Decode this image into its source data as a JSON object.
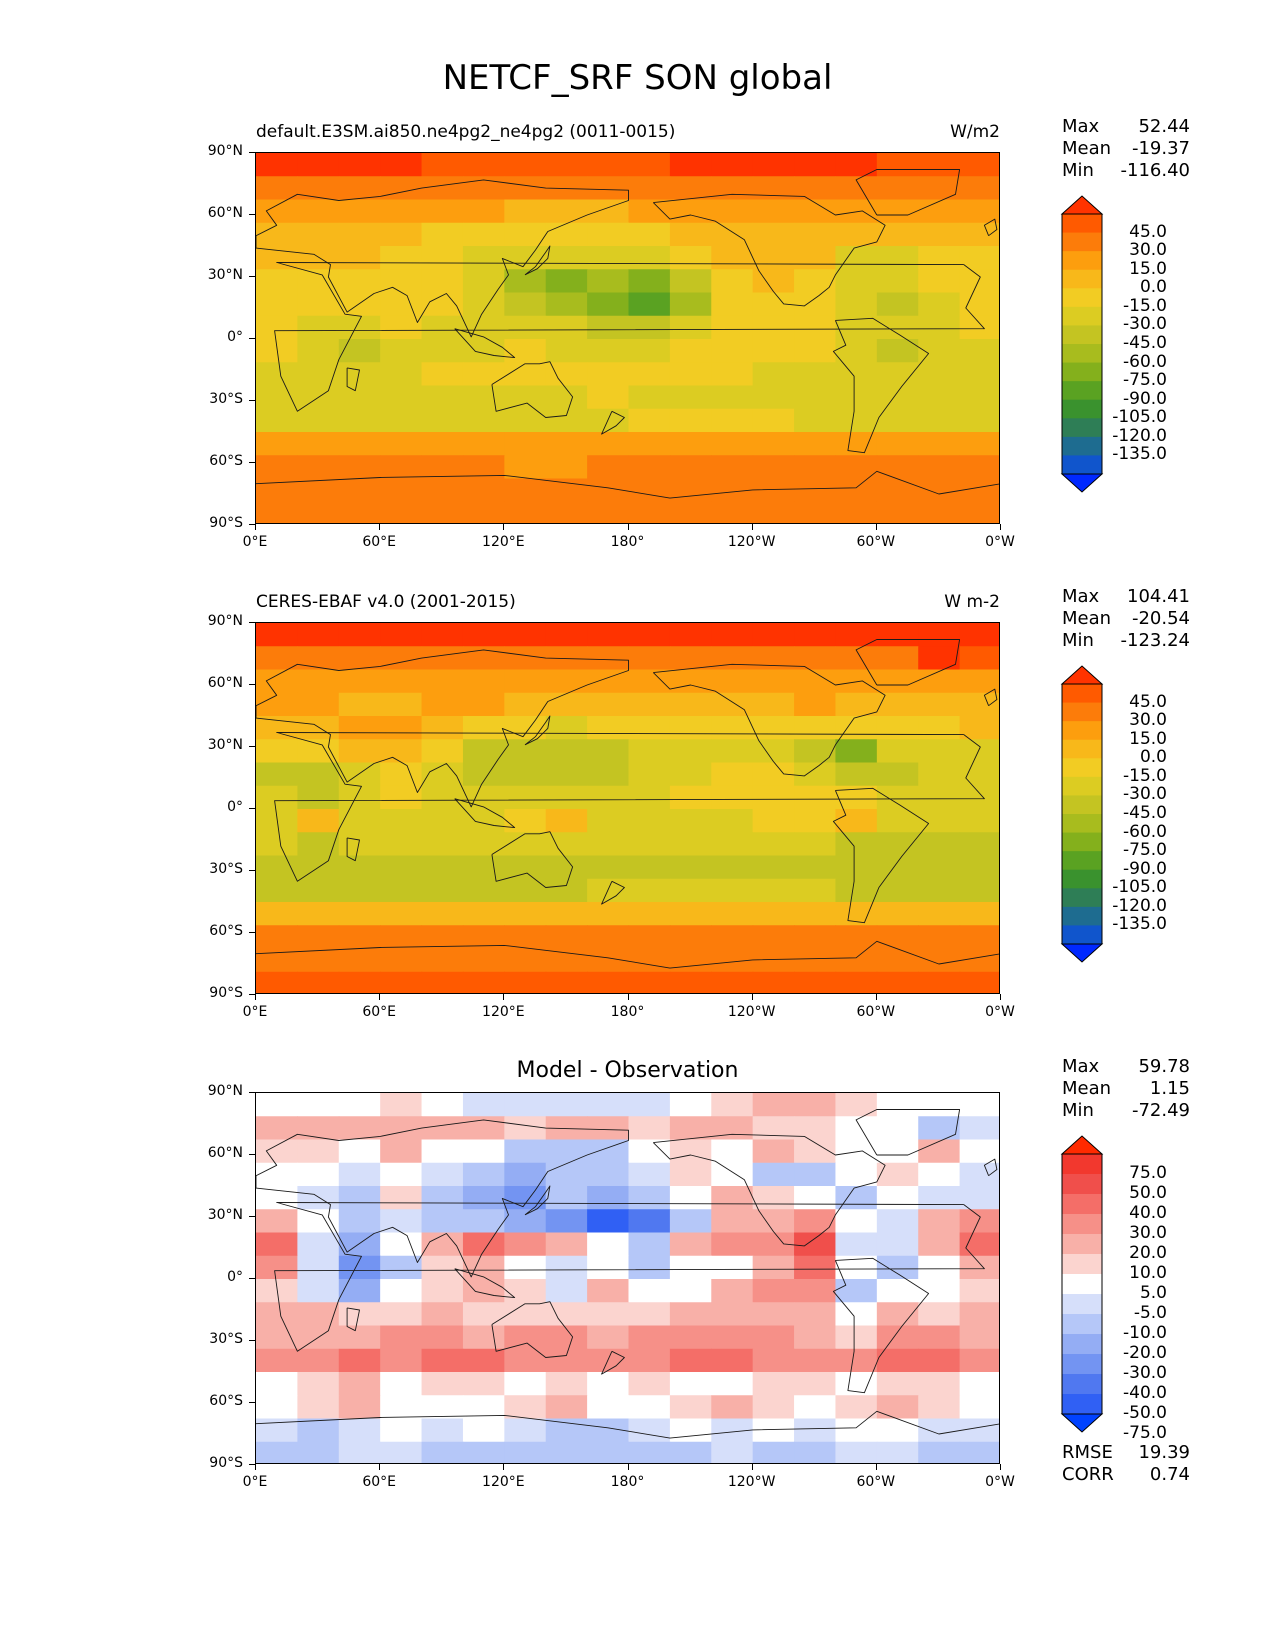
{
  "figure": {
    "title": "NETCF_SRF SON global"
  },
  "axes": {
    "lat_labels": [
      "90°N",
      "60°N",
      "30°N",
      "0°",
      "30°S",
      "60°S",
      "90°S"
    ],
    "lon_labels": [
      "0°E",
      "60°E",
      "120°E",
      "180°",
      "120°W",
      "60°W",
      "0°W"
    ]
  },
  "chart_data": [
    {
      "type": "heatmap",
      "title": "default.E3SM.ai850.ne4pg2_ne4pg2 (0011-0015)",
      "units": "W/m2",
      "stats": [
        {
          "label": "Max",
          "value": "52.44"
        },
        {
          "label": "Mean",
          "value": "-19.37"
        },
        {
          "label": "Min",
          "value": "-116.40"
        }
      ],
      "colorbar": {
        "levels": [
          "45.0",
          "30.0",
          "15.0",
          "0.0",
          "-15.0",
          "-30.0",
          "-45.0",
          "-60.0",
          "-75.0",
          "-90.0",
          "-105.0",
          "-120.0",
          "-135.0"
        ],
        "colors": [
          "#ff3300",
          "#ff5a00",
          "#fc7c0a",
          "#fd9e0e",
          "#f8b81a",
          "#f2cc23",
          "#dccc22",
          "#c4c422",
          "#a8bc1e",
          "#84b01c",
          "#5aa222",
          "#3a922e",
          "#2e7e56",
          "#1e6c90",
          "#1055cc",
          "#0028ff"
        ]
      },
      "x": "longitude",
      "y": "latitude",
      "xlim": [
        0,
        360
      ],
      "ylim": [
        -90,
        90
      ],
      "rows": [
        [
          45,
          45,
          45,
          45,
          35,
          35,
          35,
          35,
          35,
          35,
          45,
          45,
          45,
          45,
          45,
          35,
          35,
          35
        ],
        [
          20,
          20,
          20,
          20,
          20,
          20,
          20,
          20,
          20,
          20,
          20,
          20,
          20,
          20,
          20,
          20,
          20,
          20
        ],
        [
          5,
          5,
          5,
          5,
          0,
          0,
          -5,
          -5,
          -5,
          0,
          5,
          5,
          5,
          5,
          5,
          5,
          5,
          5
        ],
        [
          -5,
          -10,
          -15,
          -15,
          -20,
          -20,
          -30,
          -30,
          -25,
          -20,
          -10,
          -5,
          -5,
          -5,
          -10,
          -10,
          -10,
          -10
        ],
        [
          -15,
          -15,
          -15,
          -20,
          -25,
          -35,
          -45,
          -45,
          -40,
          -35,
          -25,
          -15,
          -15,
          -15,
          -35,
          -40,
          -30,
          -20
        ],
        [
          -20,
          -20,
          -20,
          -25,
          -30,
          -45,
          -65,
          -80,
          -75,
          -85,
          -50,
          -20,
          -15,
          -20,
          -40,
          -40,
          -30,
          -25
        ],
        [
          -25,
          -25,
          -20,
          -20,
          -30,
          -40,
          -60,
          -75,
          -85,
          -100,
          -65,
          -30,
          -20,
          -25,
          -40,
          -50,
          -35,
          -25
        ],
        [
          -25,
          -35,
          -45,
          -30,
          -35,
          -35,
          -35,
          -45,
          -55,
          -50,
          -40,
          -25,
          -20,
          -30,
          -45,
          -45,
          -35,
          -30
        ],
        [
          -30,
          -45,
          -50,
          -35,
          -35,
          -35,
          -30,
          -35,
          -40,
          -40,
          -30,
          -25,
          -25,
          -30,
          -45,
          -50,
          -40,
          -35
        ],
        [
          -35,
          -35,
          -35,
          -35,
          -30,
          -30,
          -30,
          -30,
          -30,
          -30,
          -30,
          -30,
          -35,
          -40,
          -45,
          -45,
          -45,
          -40
        ],
        [
          -40,
          -40,
          -40,
          -40,
          -40,
          -35,
          -35,
          -35,
          -30,
          -35,
          -35,
          -35,
          -35,
          -40,
          -40,
          -45,
          -45,
          -45
        ],
        [
          -35,
          -35,
          -35,
          -35,
          -35,
          -35,
          -35,
          -35,
          -35,
          -30,
          -30,
          -30,
          -30,
          -35,
          -35,
          -35,
          -35,
          -35
        ],
        [
          5,
          5,
          5,
          5,
          0,
          0,
          0,
          0,
          0,
          0,
          0,
          0,
          0,
          0,
          0,
          0,
          5,
          5
        ],
        [
          15,
          15,
          15,
          15,
          15,
          15,
          10,
          10,
          15,
          15,
          15,
          15,
          15,
          15,
          15,
          15,
          20,
          20
        ],
        [
          20,
          20,
          20,
          20,
          20,
          20,
          20,
          20,
          20,
          20,
          20,
          20,
          20,
          20,
          20,
          20,
          20,
          20
        ],
        [
          25,
          25,
          25,
          25,
          25,
          25,
          25,
          25,
          25,
          25,
          25,
          25,
          25,
          25,
          25,
          25,
          25,
          25
        ]
      ]
    },
    {
      "type": "heatmap",
      "title": "CERES-EBAF v4.0 (2001-2015)",
      "units": "W m-2",
      "stats": [
        {
          "label": "Max",
          "value": "104.41"
        },
        {
          "label": "Mean",
          "value": "-20.54"
        },
        {
          "label": "Min",
          "value": "-123.24"
        }
      ],
      "colorbar": {
        "levels": [
          "45.0",
          "30.0",
          "15.0",
          "0.0",
          "-15.0",
          "-30.0",
          "-45.0",
          "-60.0",
          "-75.0",
          "-90.0",
          "-105.0",
          "-120.0",
          "-135.0"
        ],
        "colors": [
          "#ff3300",
          "#ff5a00",
          "#fc7c0a",
          "#fd9e0e",
          "#f8b81a",
          "#f2cc23",
          "#dccc22",
          "#c4c422",
          "#a8bc1e",
          "#84b01c",
          "#5aa222",
          "#3a922e",
          "#2e7e56",
          "#1e6c90",
          "#1055cc",
          "#0028ff"
        ]
      },
      "x": "longitude",
      "y": "latitude",
      "xlim": [
        0,
        360
      ],
      "ylim": [
        -90,
        90
      ],
      "rows": [
        [
          45,
          45,
          45,
          45,
          45,
          45,
          45,
          45,
          45,
          45,
          45,
          45,
          45,
          45,
          45,
          45,
          45,
          45
        ],
        [
          20,
          25,
          25,
          20,
          20,
          20,
          20,
          20,
          20,
          20,
          20,
          20,
          20,
          20,
          20,
          25,
          55,
          30
        ],
        [
          10,
          10,
          10,
          5,
          10,
          5,
          5,
          0,
          5,
          5,
          5,
          5,
          0,
          5,
          5,
          5,
          10,
          10
        ],
        [
          0,
          0,
          -5,
          -5,
          5,
          0,
          -5,
          -5,
          -10,
          -15,
          -15,
          -10,
          -5,
          0,
          -5,
          -5,
          -10,
          -5
        ],
        [
          -10,
          -5,
          5,
          0,
          -10,
          -25,
          -30,
          -35,
          -30,
          -25,
          -25,
          -25,
          -20,
          -20,
          -20,
          -30,
          -20,
          -15
        ],
        [
          -30,
          -25,
          -15,
          -10,
          -25,
          -50,
          -60,
          -55,
          -50,
          -45,
          -40,
          -35,
          -40,
          -60,
          -80,
          -45,
          -35,
          -35
        ],
        [
          -55,
          -50,
          -35,
          -30,
          -35,
          -55,
          -60,
          -60,
          -55,
          -40,
          -35,
          -30,
          -30,
          -40,
          -55,
          -50,
          -35,
          -40
        ],
        [
          -45,
          -50,
          -45,
          -30,
          -35,
          -40,
          -35,
          -35,
          -40,
          -35,
          -30,
          -30,
          -25,
          -25,
          -20,
          -45,
          -40,
          -40
        ],
        [
          -35,
          -15,
          -45,
          -40,
          -35,
          -35,
          -25,
          -15,
          -35,
          -40,
          -35,
          -35,
          -30,
          -25,
          -10,
          -45,
          -45,
          -40
        ],
        [
          -45,
          -50,
          -45,
          -45,
          -45,
          -45,
          -45,
          -45,
          -45,
          -45,
          -45,
          -45,
          -45,
          -45,
          -55,
          -50,
          -50,
          -50
        ],
        [
          -55,
          -55,
          -55,
          -55,
          -55,
          -50,
          -50,
          -50,
          -50,
          -50,
          -50,
          -50,
          -50,
          -50,
          -50,
          -55,
          -55,
          -55
        ],
        [
          -50,
          -50,
          -50,
          -50,
          -50,
          -50,
          -50,
          -50,
          -45,
          -45,
          -45,
          -45,
          -45,
          -45,
          -50,
          -50,
          -50,
          -50
        ],
        [
          -5,
          -5,
          -5,
          -5,
          -5,
          -5,
          -5,
          -5,
          -5,
          -5,
          -5,
          -5,
          -5,
          -5,
          -5,
          -5,
          -5,
          -5
        ],
        [
          20,
          20,
          20,
          20,
          20,
          20,
          20,
          20,
          20,
          20,
          20,
          20,
          20,
          20,
          20,
          20,
          20,
          20
        ],
        [
          25,
          25,
          25,
          25,
          25,
          25,
          25,
          25,
          25,
          25,
          25,
          25,
          25,
          25,
          25,
          25,
          25,
          25
        ],
        [
          30,
          30,
          30,
          30,
          30,
          30,
          30,
          30,
          30,
          30,
          30,
          30,
          30,
          30,
          30,
          30,
          30,
          30
        ]
      ]
    },
    {
      "type": "heatmap",
      "title": "Model - Observation",
      "units": "",
      "stats": [
        {
          "label": "Max",
          "value": "59.78"
        },
        {
          "label": "Mean",
          "value": "1.15"
        },
        {
          "label": "Min",
          "value": "-72.49"
        }
      ],
      "colorbar": {
        "levels": [
          "75.0",
          "50.0",
          "40.0",
          "30.0",
          "20.0",
          "10.0",
          "5.0",
          "-5.0",
          "-10.0",
          "-20.0",
          "-30.0",
          "-40.0",
          "-50.0",
          "-75.0"
        ],
        "colors": [
          "#ff2a00",
          "#f2382e",
          "#f04f4b",
          "#f46e68",
          "#f69088",
          "#f8b0a8",
          "#fbd4cf",
          "#ffffff",
          "#d6dffa",
          "#b5c7f8",
          "#94adf4",
          "#7394f2",
          "#5078f0",
          "#3060f4",
          "#0042ff"
        ]
      },
      "x": "longitude",
      "y": "latitude",
      "xlim": [
        0,
        360
      ],
      "ylim": [
        -90,
        90
      ],
      "rows": [
        [
          0,
          -5,
          0,
          5,
          -5,
          -10,
          -10,
          -10,
          -10,
          -10,
          0,
          5,
          10,
          10,
          5,
          0,
          -5,
          0
        ],
        [
          15,
          15,
          10,
          10,
          15,
          10,
          5,
          10,
          10,
          5,
          15,
          10,
          5,
          5,
          0,
          -5,
          -15,
          -10
        ],
        [
          5,
          5,
          0,
          10,
          0,
          -5,
          -15,
          -20,
          -15,
          -5,
          5,
          0,
          10,
          5,
          -5,
          0,
          10,
          0
        ],
        [
          0,
          -5,
          -10,
          -5,
          -10,
          -20,
          -25,
          -20,
          -15,
          -10,
          5,
          0,
          -15,
          -20,
          0,
          5,
          -5,
          -10
        ],
        [
          -5,
          -10,
          -20,
          5,
          -15,
          -30,
          -35,
          -20,
          -25,
          -20,
          0,
          10,
          5,
          0,
          -15,
          -5,
          -10,
          -10
        ],
        [
          10,
          -5,
          -20,
          -10,
          -20,
          -20,
          -30,
          -40,
          -60,
          -50,
          -15,
          10,
          15,
          25,
          -5,
          -10,
          10,
          20
        ],
        [
          35,
          -10,
          -25,
          0,
          10,
          30,
          20,
          15,
          0,
          -15,
          10,
          20,
          25,
          40,
          -10,
          -10,
          15,
          30
        ],
        [
          20,
          -10,
          -40,
          -20,
          5,
          15,
          0,
          -10,
          -5,
          -15,
          -5,
          0,
          10,
          30,
          -5,
          -20,
          -5,
          15
        ],
        [
          5,
          -10,
          -30,
          -5,
          5,
          10,
          5,
          -10,
          10,
          0,
          0,
          10,
          20,
          25,
          -15,
          -5,
          0,
          5
        ],
        [
          10,
          10,
          5,
          5,
          10,
          5,
          5,
          5,
          5,
          5,
          10,
          15,
          15,
          10,
          0,
          10,
          5,
          10
        ],
        [
          15,
          15,
          15,
          20,
          20,
          15,
          20,
          20,
          15,
          20,
          25,
          25,
          20,
          15,
          5,
          20,
          20,
          15
        ],
        [
          20,
          25,
          30,
          25,
          30,
          30,
          25,
          20,
          20,
          25,
          30,
          30,
          25,
          20,
          20,
          30,
          30,
          25
        ],
        [
          0,
          5,
          10,
          0,
          5,
          5,
          0,
          5,
          0,
          5,
          0,
          0,
          5,
          5,
          0,
          5,
          5,
          0
        ],
        [
          -5,
          5,
          10,
          0,
          -5,
          0,
          5,
          10,
          0,
          -5,
          5,
          10,
          5,
          0,
          5,
          10,
          5,
          0
        ],
        [
          -10,
          -15,
          -10,
          -5,
          -10,
          -5,
          -10,
          -15,
          -20,
          -10,
          -5,
          -10,
          -5,
          -10,
          -5,
          -5,
          -10,
          -10
        ],
        [
          -15,
          -15,
          -10,
          -10,
          -15,
          -15,
          -15,
          -20,
          -20,
          -15,
          -15,
          -10,
          -15,
          -15,
          -10,
          -10,
          -15,
          -15
        ]
      ],
      "rmse": {
        "label": "RMSE",
        "value": "19.39"
      },
      "corr": {
        "label": "CORR",
        "value": "0.74"
      }
    }
  ]
}
